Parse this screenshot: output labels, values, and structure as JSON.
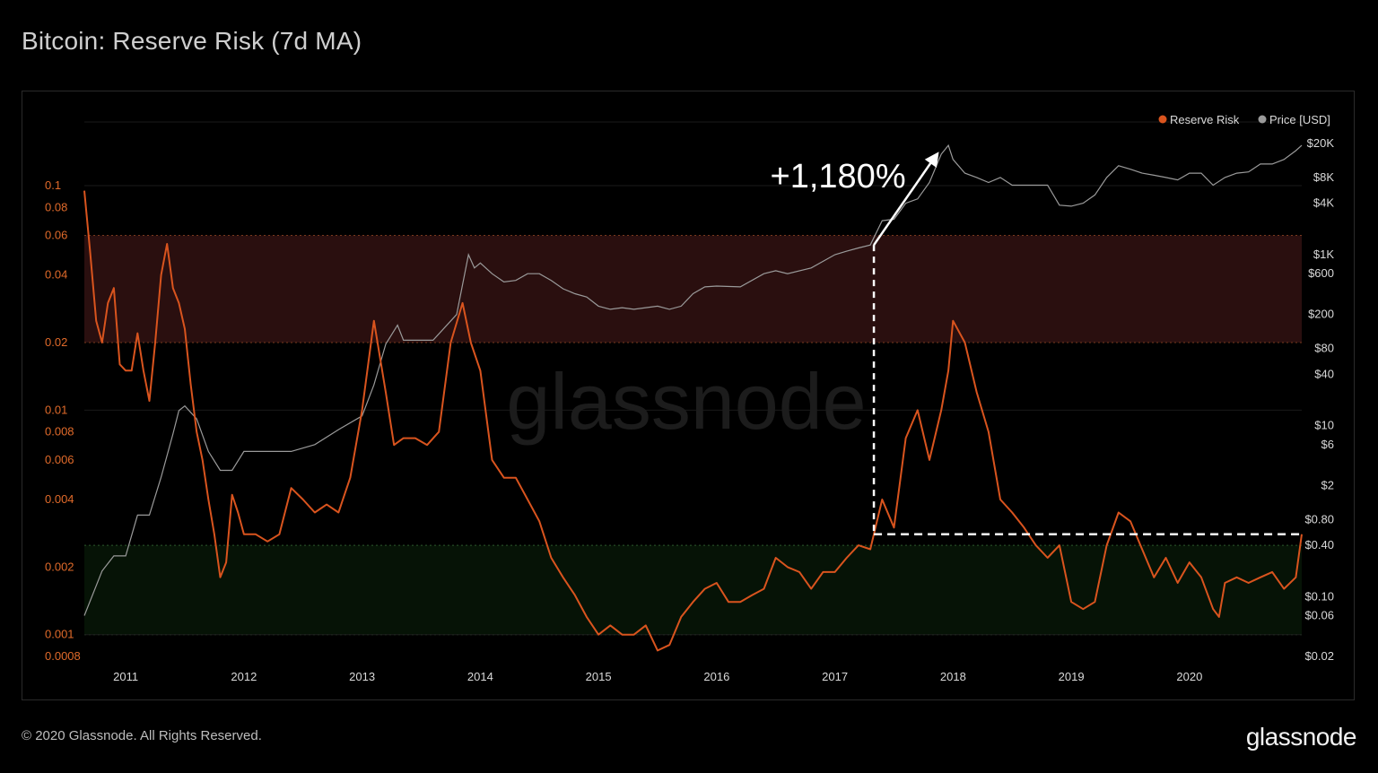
{
  "title": "Bitcoin: Reserve Risk (7d MA)",
  "footer": {
    "copyright": "© 2020 Glassnode. All Rights Reserved.",
    "logo": "glassnode"
  },
  "watermark": "glassnode",
  "colors": {
    "reserve_risk": "#d9541e",
    "price": "#9a9a9a",
    "red_band": "#2a0f0f",
    "green_band": "#061306",
    "annotation": "#ffffff"
  },
  "chart_data": {
    "type": "line",
    "title": "Bitcoin: Reserve Risk (7d MA)",
    "legend": {
      "placement": "top-right",
      "entries": [
        "Reserve Risk",
        "Price [USD]"
      ]
    },
    "x_ticks": [
      "2011",
      "2012",
      "2013",
      "2014",
      "2015",
      "2016",
      "2017",
      "2018",
      "2019",
      "2020"
    ],
    "x_range": [
      2010.65,
      2020.95
    ],
    "left_axis": {
      "scale": "log",
      "range": [
        0.0008,
        0.1
      ],
      "tick_labels": [
        "0.1",
        "0.08",
        "0.06",
        "0.04",
        "0.02",
        "0.01",
        "0.008",
        "0.006",
        "0.004",
        "0.002",
        "0.001",
        "0.0008"
      ],
      "tick_values": [
        0.1,
        0.08,
        0.06,
        0.04,
        0.02,
        0.01,
        0.008,
        0.006,
        0.004,
        0.002,
        0.001,
        0.0008
      ]
    },
    "right_axis": {
      "scale": "log",
      "range": [
        0.02,
        20000
      ],
      "tick_labels": [
        "$20K",
        "$8K",
        "$4K",
        "$1K",
        "$600",
        "$200",
        "$80",
        "$40",
        "$10",
        "$6",
        "$2",
        "$0.80",
        "$0.40",
        "$0.10",
        "$0.06",
        "$0.02"
      ],
      "tick_values": [
        20000,
        8000,
        4000,
        1000,
        600,
        200,
        80,
        40,
        10,
        6,
        2,
        0.8,
        0.4,
        0.1,
        0.06,
        0.02
      ]
    },
    "bands": [
      {
        "name": "high-risk-band",
        "from": 0.02,
        "to": 0.06
      },
      {
        "name": "low-risk-band",
        "from": 0.001,
        "to": 0.0025
      }
    ],
    "series": [
      {
        "name": "Reserve Risk",
        "x": [
          2010.65,
          2010.7,
          2010.75,
          2010.8,
          2010.85,
          2010.9,
          2010.95,
          2011.0,
          2011.05,
          2011.1,
          2011.15,
          2011.2,
          2011.25,
          2011.3,
          2011.35,
          2011.4,
          2011.45,
          2011.5,
          2011.55,
          2011.6,
          2011.65,
          2011.7,
          2011.75,
          2011.8,
          2011.85,
          2011.9,
          2011.95,
          2012.0,
          2012.1,
          2012.2,
          2012.3,
          2012.4,
          2012.5,
          2012.6,
          2012.7,
          2012.8,
          2012.9,
          2013.0,
          2013.1,
          2013.2,
          2013.27,
          2013.35,
          2013.45,
          2013.55,
          2013.65,
          2013.75,
          2013.85,
          2013.92,
          2014.0,
          2014.1,
          2014.2,
          2014.3,
          2014.4,
          2014.5,
          2014.6,
          2014.7,
          2014.8,
          2014.9,
          2015.0,
          2015.1,
          2015.2,
          2015.3,
          2015.4,
          2015.5,
          2015.6,
          2015.7,
          2015.8,
          2015.9,
          2016.0,
          2016.1,
          2016.2,
          2016.3,
          2016.4,
          2016.5,
          2016.6,
          2016.7,
          2016.8,
          2016.9,
          2017.0,
          2017.1,
          2017.2,
          2017.3,
          2017.4,
          2017.5,
          2017.6,
          2017.7,
          2017.8,
          2017.9,
          2017.96,
          2018.0,
          2018.1,
          2018.2,
          2018.3,
          2018.4,
          2018.5,
          2018.6,
          2018.7,
          2018.8,
          2018.9,
          2019.0,
          2019.1,
          2019.2,
          2019.3,
          2019.4,
          2019.5,
          2019.6,
          2019.7,
          2019.8,
          2019.9,
          2020.0,
          2020.1,
          2020.2,
          2020.25,
          2020.3,
          2020.4,
          2020.5,
          2020.6,
          2020.7,
          2020.8,
          2020.9,
          2020.95
        ],
        "y": [
          0.095,
          0.05,
          0.025,
          0.02,
          0.03,
          0.035,
          0.016,
          0.015,
          0.015,
          0.022,
          0.015,
          0.011,
          0.02,
          0.04,
          0.055,
          0.035,
          0.03,
          0.023,
          0.013,
          0.008,
          0.006,
          0.004,
          0.0028,
          0.0018,
          0.0021,
          0.0042,
          0.0035,
          0.0028,
          0.0028,
          0.0026,
          0.0028,
          0.0045,
          0.004,
          0.0035,
          0.0038,
          0.0035,
          0.005,
          0.01,
          0.025,
          0.012,
          0.007,
          0.0075,
          0.0075,
          0.007,
          0.008,
          0.02,
          0.03,
          0.02,
          0.015,
          0.006,
          0.005,
          0.005,
          0.004,
          0.0032,
          0.0022,
          0.0018,
          0.0015,
          0.0012,
          0.001,
          0.0011,
          0.001,
          0.001,
          0.0011,
          0.00085,
          0.0009,
          0.0012,
          0.0014,
          0.0016,
          0.0017,
          0.0014,
          0.0014,
          0.0015,
          0.0016,
          0.0022,
          0.002,
          0.0019,
          0.0016,
          0.0019,
          0.0019,
          0.0022,
          0.0025,
          0.0024,
          0.004,
          0.003,
          0.0075,
          0.01,
          0.006,
          0.01,
          0.015,
          0.025,
          0.02,
          0.012,
          0.008,
          0.004,
          0.0035,
          0.003,
          0.0025,
          0.0022,
          0.0025,
          0.0014,
          0.0013,
          0.0014,
          0.0025,
          0.0035,
          0.0032,
          0.0024,
          0.0018,
          0.0022,
          0.0017,
          0.0021,
          0.0018,
          0.0013,
          0.0012,
          0.0017,
          0.0018,
          0.0017,
          0.0018,
          0.0019,
          0.0016,
          0.0018,
          0.0028
        ],
        "axis": "left"
      },
      {
        "name": "Price [USD]",
        "x": [
          2010.65,
          2010.8,
          2010.9,
          2011.0,
          2011.1,
          2011.2,
          2011.3,
          2011.4,
          2011.45,
          2011.5,
          2011.6,
          2011.7,
          2011.8,
          2011.9,
          2012.0,
          2012.2,
          2012.4,
          2012.6,
          2012.8,
          2013.0,
          2013.1,
          2013.2,
          2013.3,
          2013.35,
          2013.45,
          2013.6,
          2013.8,
          2013.9,
          2013.95,
          2014.0,
          2014.1,
          2014.2,
          2014.3,
          2014.4,
          2014.5,
          2014.6,
          2014.7,
          2014.8,
          2014.9,
          2015.0,
          2015.1,
          2015.2,
          2015.3,
          2015.4,
          2015.5,
          2015.6,
          2015.7,
          2015.8,
          2015.9,
          2016.0,
          2016.2,
          2016.4,
          2016.5,
          2016.6,
          2016.8,
          2017.0,
          2017.1,
          2017.2,
          2017.3,
          2017.4,
          2017.5,
          2017.6,
          2017.7,
          2017.8,
          2017.9,
          2017.96,
          2018.0,
          2018.1,
          2018.2,
          2018.3,
          2018.4,
          2018.5,
          2018.6,
          2018.7,
          2018.8,
          2018.9,
          2019.0,
          2019.1,
          2019.2,
          2019.3,
          2019.4,
          2019.5,
          2019.6,
          2019.7,
          2019.8,
          2019.9,
          2020.0,
          2020.1,
          2020.2,
          2020.3,
          2020.4,
          2020.5,
          2020.6,
          2020.7,
          2020.8,
          2020.9,
          2020.95
        ],
        "y": [
          0.06,
          0.2,
          0.3,
          0.3,
          0.9,
          0.9,
          2.5,
          8,
          15,
          17,
          12,
          5,
          3,
          3,
          5,
          5,
          5,
          6,
          9,
          13,
          30,
          90,
          150,
          100,
          100,
          100,
          200,
          1000,
          700,
          800,
          600,
          480,
          500,
          600,
          600,
          500,
          400,
          350,
          320,
          250,
          230,
          240,
          230,
          240,
          250,
          230,
          250,
          350,
          420,
          430,
          420,
          600,
          650,
          600,
          700,
          1000,
          1100,
          1200,
          1300,
          2500,
          2600,
          4000,
          4500,
          7000,
          15000,
          19000,
          13000,
          9000,
          8000,
          7000,
          8000,
          6500,
          6500,
          6500,
          6500,
          3800,
          3700,
          4000,
          5000,
          8000,
          11000,
          10000,
          9000,
          8500,
          8000,
          7500,
          9000,
          9000,
          6500,
          8000,
          9000,
          9300,
          11500,
          11500,
          13000,
          16500,
          19000
        ],
        "axis": "right"
      }
    ],
    "annotations": [
      {
        "text": "+1,180%",
        "kind": "arrow",
        "from_x": 2017.33,
        "to_x": 2017.88,
        "from_price": 1300,
        "to_price": 16000
      },
      {
        "kind": "dashed-guide",
        "x": 2017.33,
        "y_reserve_risk": 0.0028,
        "x_end": 2020.95
      }
    ]
  }
}
